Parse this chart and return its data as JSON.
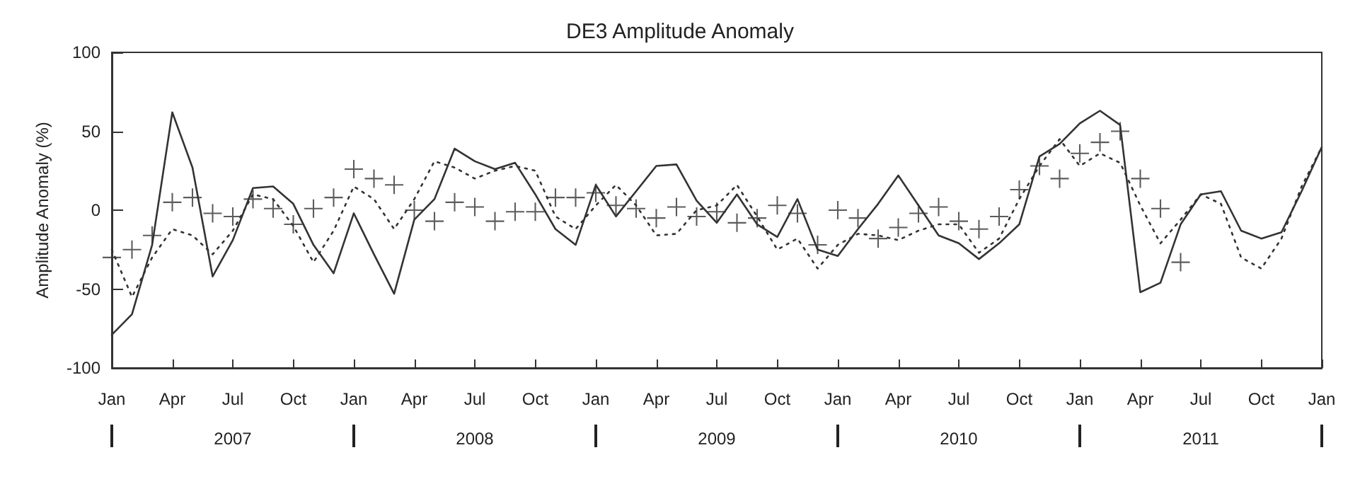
{
  "chart_data": {
    "type": "line",
    "title": "DE3 Amplitude Anomaly",
    "ylabel": "Amplitude Anomaly (%)",
    "x": [
      "2007-01",
      "2007-02",
      "2007-03",
      "2007-04",
      "2007-05",
      "2007-06",
      "2007-07",
      "2007-08",
      "2007-09",
      "2007-10",
      "2007-11",
      "2007-12",
      "2008-01",
      "2008-02",
      "2008-03",
      "2008-04",
      "2008-05",
      "2008-06",
      "2008-07",
      "2008-08",
      "2008-09",
      "2008-10",
      "2008-11",
      "2008-12",
      "2009-01",
      "2009-02",
      "2009-03",
      "2009-04",
      "2009-05",
      "2009-06",
      "2009-07",
      "2009-08",
      "2009-09",
      "2009-10",
      "2009-11",
      "2009-12",
      "2010-01",
      "2010-02",
      "2010-03",
      "2010-04",
      "2010-05",
      "2010-06",
      "2010-07",
      "2010-08",
      "2010-09",
      "2010-10",
      "2010-11",
      "2010-12",
      "2011-01",
      "2011-02",
      "2011-03",
      "2011-04",
      "2011-05",
      "2011-06",
      "2011-07",
      "2011-08",
      "2011-09",
      "2011-10",
      "2011-11",
      "2011-12",
      "2012-01"
    ],
    "series": [
      {
        "color": "#333333",
        "line_style": "solid",
        "marker": "none",
        "values": [
          -79,
          -66,
          -22,
          62,
          27,
          -42,
          -19,
          14,
          15,
          4,
          -22,
          -40,
          -2,
          -28,
          -53,
          -6,
          7,
          39,
          31,
          26,
          30,
          10,
          -12,
          -22,
          16,
          -4,
          12,
          28,
          29,
          6,
          -8,
          10,
          -9,
          -17,
          7,
          -25,
          -29,
          -12,
          4,
          22,
          3,
          -16,
          -21,
          -31,
          -21,
          -9,
          34,
          42,
          55,
          63,
          54,
          -52,
          -46,
          -9,
          10,
          12,
          -13,
          -18,
          -14,
          12,
          40
        ]
      },
      {
        "color": "#333333",
        "line_style": "dotted",
        "marker": "none",
        "values": [
          -25,
          -55,
          -30,
          -12,
          -16,
          -28,
          -13,
          10,
          7,
          -10,
          -33,
          -13,
          15,
          7,
          -12,
          7,
          31,
          27,
          20,
          25,
          28,
          25,
          -4,
          -12,
          3,
          16,
          3,
          -16,
          -15,
          0,
          3,
          16,
          -4,
          -25,
          -18,
          -37,
          -22,
          -15,
          -16,
          -19,
          -13,
          -9,
          -9,
          -27,
          -18,
          7,
          28,
          45,
          28,
          36,
          30,
          3,
          -21,
          -6,
          10,
          4,
          -30,
          -37,
          -18,
          15,
          40
        ]
      },
      {
        "type": "scatter",
        "color": "#333333",
        "marker": "cross",
        "values": [
          -30,
          -25,
          -16,
          5,
          8,
          -2,
          -4,
          7,
          1,
          -9,
          1,
          8,
          26,
          20,
          16,
          0,
          -7,
          5,
          2,
          -7,
          -1,
          -1,
          8,
          8,
          11,
          3,
          1,
          -5,
          2,
          -4,
          -1,
          -8,
          -5,
          3,
          -2,
          -22,
          0,
          -5,
          -18,
          -11,
          -2,
          2,
          -7,
          -12,
          -4,
          13,
          28,
          20,
          36,
          43,
          50,
          20,
          1,
          -33,
          null,
          null,
          null,
          null,
          null,
          null,
          null
        ]
      }
    ],
    "xlim": [
      "2007-01",
      "2012-01"
    ],
    "xticks": [
      {
        "value": "2007-01",
        "label": "Jan"
      },
      {
        "value": "2007-04",
        "label": "Apr"
      },
      {
        "value": "2007-07",
        "label": "Jul"
      },
      {
        "value": "2007-10",
        "label": "Oct"
      },
      {
        "value": "2008-01",
        "label": "Jan"
      },
      {
        "value": "2008-04",
        "label": "Apr"
      },
      {
        "value": "2008-07",
        "label": "Jul"
      },
      {
        "value": "2008-10",
        "label": "Oct"
      },
      {
        "value": "2009-01",
        "label": "Jan"
      },
      {
        "value": "2009-04",
        "label": "Apr"
      },
      {
        "value": "2009-07",
        "label": "Jul"
      },
      {
        "value": "2009-10",
        "label": "Oct"
      },
      {
        "value": "2010-01",
        "label": "Jan"
      },
      {
        "value": "2010-04",
        "label": "Apr"
      },
      {
        "value": "2010-07",
        "label": "Jul"
      },
      {
        "value": "2010-10",
        "label": "Oct"
      },
      {
        "value": "2011-01",
        "label": "Jan"
      },
      {
        "value": "2011-04",
        "label": "Apr"
      },
      {
        "value": "2011-07",
        "label": "Jul"
      },
      {
        "value": "2011-10",
        "label": "Oct"
      },
      {
        "value": "2012-01",
        "label": "Jan"
      }
    ],
    "x2lim": [
      "2007-01",
      "2012-01"
    ],
    "x2ticks": [
      {
        "value": "2007-01",
        "label": null
      },
      {
        "value": "2007-07",
        "label": "2007"
      },
      {
        "value": "2008-01",
        "label": null
      },
      {
        "value": "2008-07",
        "label": "2008"
      },
      {
        "value": "2009-01",
        "label": null
      },
      {
        "value": "2009-07",
        "label": "2009"
      },
      {
        "value": "2010-01",
        "label": null
      },
      {
        "value": "2010-07",
        "label": "2010"
      },
      {
        "value": "2011-01",
        "label": null
      },
      {
        "value": "2011-07",
        "label": "2011"
      },
      {
        "value": "2012-01",
        "label": null
      }
    ],
    "ylim": [
      -100,
      100
    ],
    "yticks": [
      -100,
      -50,
      0,
      50,
      100
    ]
  }
}
